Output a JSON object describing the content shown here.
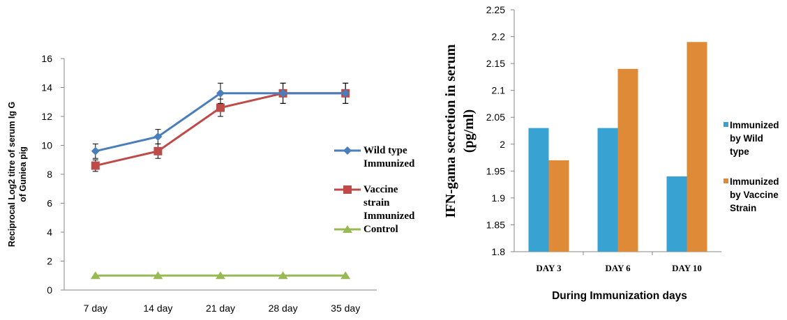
{
  "chart_data": [
    {
      "type": "line",
      "title": "",
      "xlabel": "",
      "ylabel": "Reciprocal Log2 titre of serum Ig G of Guniea pig",
      "ylabel_lines": [
        "Reciprocal Log2 titre of serum Ig G",
        "of Guniea pig"
      ],
      "categories": [
        "7 day",
        "14 day",
        "21 day",
        "28 day",
        "35 day"
      ],
      "ylim": [
        0,
        16
      ],
      "yticks": [
        "0",
        "2",
        "4",
        "6",
        "8",
        "10",
        "12",
        "14",
        "16"
      ],
      "grid": false,
      "legend_position": "right",
      "series": [
        {
          "name": "Wild type Immunized",
          "legend_lines": [
            "Wild type",
            "Immunized"
          ],
          "marker": "diamond",
          "color": "#4a7ebb",
          "values": [
            9.6,
            10.6,
            13.6,
            13.6,
            13.6
          ],
          "errors": [
            0.5,
            0.5,
            0.7,
            0.7,
            0.7
          ]
        },
        {
          "name": "Vaccine strain Immunized",
          "legend_lines": [
            "Vaccine",
            "strain",
            "Immunized"
          ],
          "marker": "square",
          "color": "#be4b48",
          "values": [
            8.6,
            9.6,
            12.6,
            13.6,
            13.6
          ],
          "errors": [
            0.4,
            0.5,
            0.6,
            0.7,
            0.7
          ]
        },
        {
          "name": "Control",
          "legend_lines": [
            "Control"
          ],
          "marker": "triangle",
          "color": "#98b954",
          "values": [
            1,
            1,
            1,
            1,
            1
          ],
          "errors": [
            0,
            0,
            0,
            0,
            0
          ]
        }
      ]
    },
    {
      "type": "bar",
      "title": "",
      "xlabel": "During Immunization days",
      "ylabel": "IFN-gama secretion in serum (pg/ml)",
      "ylabel_lines": [
        "IFN-gama secretion in serum",
        "(pg/ml)"
      ],
      "categories": [
        "DAY 3",
        "DAY 6",
        "DAY 10"
      ],
      "ylim": [
        1.8,
        2.25
      ],
      "yticks": [
        "1.8",
        "1.85",
        "1.9",
        "1.95",
        "2",
        "2.05",
        "2.1",
        "2.15",
        "2.2",
        "2.25"
      ],
      "grid": false,
      "legend_position": "right",
      "series": [
        {
          "name": "Immunized by Wild type",
          "legend_lines": [
            "Immunized",
            "by Wild",
            "type"
          ],
          "color": "#38a2d2",
          "values": [
            2.03,
            2.03,
            1.94
          ]
        },
        {
          "name": "Immunized by Vaccine Strain",
          "legend_lines": [
            "Immunized",
            "by Vaccine",
            "Strain"
          ],
          "color": "#df8a36",
          "values": [
            1.97,
            2.14,
            2.19
          ]
        }
      ]
    }
  ]
}
